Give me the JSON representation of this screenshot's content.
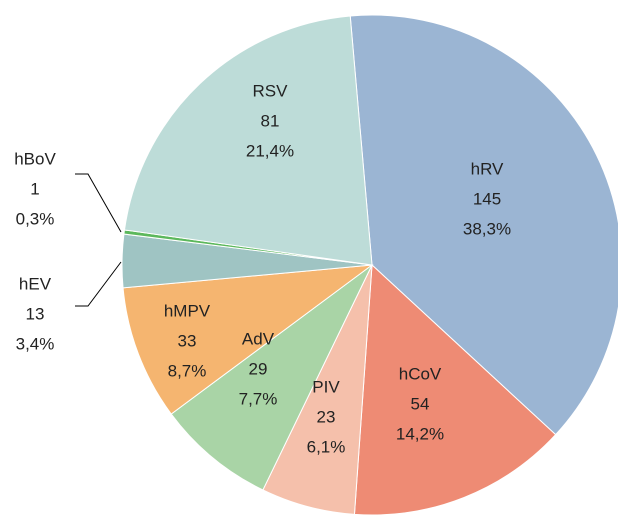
{
  "chart_data": {
    "type": "pie",
    "categories": [
      "hRV",
      "hCoV",
      "PIV",
      "AdV",
      "hMPV",
      "hEV",
      "hBoV",
      "RSV"
    ],
    "values": [
      145,
      54,
      23,
      29,
      33,
      13,
      1,
      81
    ],
    "shares": [
      38.3,
      14.2,
      6.1,
      7.7,
      8.7,
      3.4,
      0.3,
      21.4
    ],
    "share_labels": [
      "38,3%",
      "14,2%",
      "6,1%",
      "7,7%",
      "8,7%",
      "3,4%",
      "0,3%",
      "21,4%"
    ],
    "colors": [
      "#9bb5d3",
      "#ee8b74",
      "#f5c0ab",
      "#a9d4a6",
      "#f5b570",
      "#9fc4c3",
      "#5cb85c",
      "#bddcd8"
    ]
  }
}
